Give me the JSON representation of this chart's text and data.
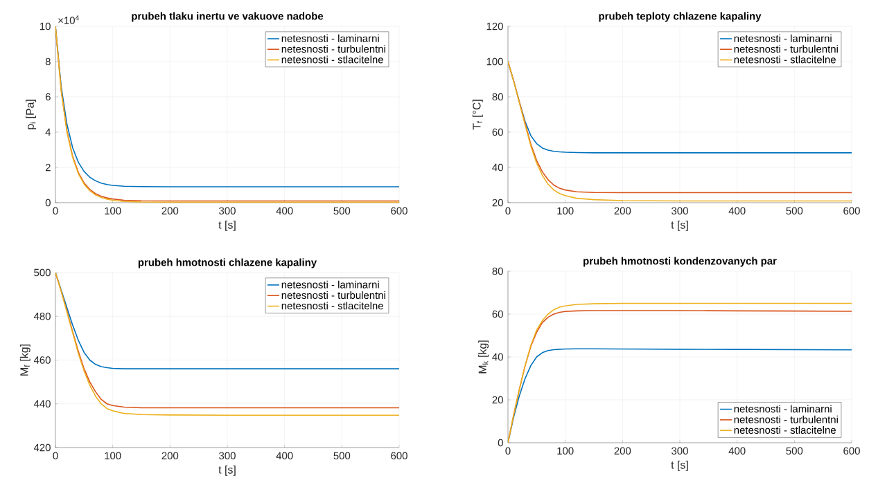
{
  "chart_data": [
    {
      "type": "line",
      "title": "prubeh tlaku inertu ve vakuove nadobe",
      "xlabel": "t [s]",
      "ylabel": "p$_{i}$ [Pa]",
      "annotations": [
        "×10$^{4}$"
      ],
      "x": [
        0,
        10,
        20,
        30,
        40,
        50,
        60,
        70,
        80,
        90,
        100,
        120,
        150,
        200,
        300,
        400,
        500,
        600
      ],
      "xlim": [
        0,
        600
      ],
      "xticks": [
        0,
        100,
        200,
        300,
        400,
        500,
        600
      ],
      "ylim": [
        0,
        10
      ],
      "yticks": [
        0,
        2,
        4,
        6,
        8,
        10
      ],
      "grid": true,
      "legend": "top right",
      "line_style": "solid",
      "series": [
        {
          "name": "netesnosti - laminarni",
          "color": "#0072bd",
          "values": [
            10,
            6.59,
            4.46,
            3.12,
            2.29,
            1.77,
            1.44,
            1.24,
            1.11,
            1.03,
            0.98,
            0.93,
            0.91,
            0.9,
            0.9,
            0.9,
            0.9,
            0.9
          ]
        },
        {
          "name": "netesnosti - turbulentni",
          "color": "#d95319",
          "values": [
            10,
            6.39,
            4.09,
            2.63,
            1.71,
            1.12,
            0.75,
            0.51,
            0.36,
            0.27,
            0.21,
            0.14,
            0.11,
            0.1,
            0.1,
            0.1,
            0.1,
            0.1
          ]
        },
        {
          "name": "netesnosti - stlacitelne",
          "color": "#edb120",
          "values": [
            10,
            6.35,
            4.03,
            2.57,
            1.64,
            1.05,
            0.68,
            0.44,
            0.29,
            0.2,
            0.14,
            0.07,
            0.04,
            0.03,
            0.03,
            0.03,
            0.03,
            0.03
          ]
        }
      ]
    },
    {
      "type": "line",
      "title": "prubeh teploty chlazene kapaliny",
      "xlabel": "t [s]",
      "ylabel": "T$_{f}$ [°C]",
      "x": [
        0,
        10,
        20,
        30,
        40,
        50,
        60,
        70,
        80,
        90,
        100,
        120,
        150,
        200,
        300,
        400,
        500,
        600
      ],
      "xlim": [
        0,
        600
      ],
      "xticks": [
        0,
        100,
        200,
        300,
        400,
        500,
        600
      ],
      "ylim": [
        20,
        120
      ],
      "yticks": [
        20,
        40,
        60,
        80,
        100,
        120
      ],
      "grid": true,
      "legend": "top right",
      "line_style": "solid",
      "series": [
        {
          "name": "netesnosti - laminarni",
          "color": "#0072bd",
          "values": [
            100,
            89,
            77,
            66,
            58,
            53.5,
            51,
            49.8,
            49.1,
            48.8,
            48.6,
            48.4,
            48.3,
            48.3,
            48.3,
            48.3,
            48.3,
            48.3
          ]
        },
        {
          "name": "netesnosti - turbulentni",
          "color": "#d95319",
          "values": [
            100,
            89,
            77,
            65,
            53,
            44,
            37.5,
            33,
            30,
            28.2,
            27.2,
            26.2,
            25.8,
            25.7,
            25.7,
            25.7,
            25.7,
            25.7
          ]
        },
        {
          "name": "netesnosti - stlacitelne",
          "color": "#edb120",
          "values": [
            100,
            89,
            76.5,
            64,
            52,
            42.5,
            35.5,
            30.5,
            27.2,
            25.2,
            24,
            22.5,
            21.7,
            21.2,
            21,
            21,
            21,
            21
          ]
        }
      ]
    },
    {
      "type": "line",
      "title": "prubeh hmotnosti chlazene kapaliny",
      "xlabel": "t [s]",
      "ylabel": "M$_{f}$ [kg]",
      "x": [
        0,
        10,
        20,
        30,
        40,
        50,
        60,
        70,
        80,
        90,
        100,
        120,
        150,
        200,
        300,
        400,
        500,
        600
      ],
      "xlim": [
        0,
        600
      ],
      "xticks": [
        0,
        100,
        200,
        300,
        400,
        500,
        600
      ],
      "ylim": [
        420,
        500
      ],
      "yticks": [
        420,
        440,
        460,
        480,
        500
      ],
      "grid": true,
      "legend": "top right",
      "line_style": "solid",
      "series": [
        {
          "name": "netesnosti - laminarni",
          "color": "#0072bd",
          "values": [
            500,
            492,
            484,
            476,
            469,
            463.5,
            460,
            458,
            457,
            456.5,
            456.2,
            456,
            456,
            456,
            456,
            456,
            456,
            456
          ]
        },
        {
          "name": "netesnosti - turbulentni",
          "color": "#d95319",
          "values": [
            500,
            491.5,
            482.5,
            473,
            464,
            456,
            450,
            445.5,
            442,
            440,
            439.2,
            438.5,
            438.2,
            438.2,
            438.2,
            438.2,
            438.2,
            438.2
          ]
        },
        {
          "name": "netesnosti - stlacitelne",
          "color": "#edb120",
          "values": [
            500,
            491.5,
            482,
            472.5,
            463,
            455,
            448.5,
            443.5,
            440,
            437.8,
            436.8,
            435.6,
            435.1,
            434.9,
            434.8,
            434.8,
            434.8,
            434.8
          ]
        }
      ]
    },
    {
      "type": "line",
      "title": "prubeh hmotnosti kondenzovanych par",
      "xlabel": "t [s]",
      "ylabel": "M$_{k}$ [kg]",
      "x": [
        0,
        10,
        20,
        30,
        40,
        50,
        60,
        70,
        80,
        90,
        100,
        120,
        150,
        200,
        300,
        400,
        500,
        600
      ],
      "xlim": [
        0,
        600
      ],
      "xticks": [
        0,
        100,
        200,
        300,
        400,
        500,
        600
      ],
      "ylim": [
        0,
        80
      ],
      "yticks": [
        0,
        20,
        40,
        60,
        80
      ],
      "grid": true,
      "legend": "bottom right",
      "line_style": "solid",
      "series": [
        {
          "name": "netesnosti - laminarni",
          "color": "#0072bd",
          "values": [
            0,
            12,
            22,
            30,
            36,
            40,
            42,
            43,
            43.4,
            43.6,
            43.7,
            43.8,
            43.8,
            43.7,
            43.6,
            43.5,
            43.4,
            43.3
          ]
        },
        {
          "name": "netesnosti - turbulentni",
          "color": "#d95319",
          "values": [
            0,
            13,
            25,
            36,
            45,
            51.5,
            56,
            58.5,
            60,
            60.8,
            61.2,
            61.5,
            61.6,
            61.6,
            61.6,
            61.5,
            61.4,
            61.3
          ]
        },
        {
          "name": "netesnosti - stlacitelne",
          "color": "#edb120",
          "values": [
            0,
            13,
            25,
            36,
            45.5,
            52.5,
            57,
            60,
            62,
            63.2,
            63.8,
            64.5,
            64.8,
            65,
            65,
            65,
            65,
            65
          ]
        }
      ]
    }
  ]
}
